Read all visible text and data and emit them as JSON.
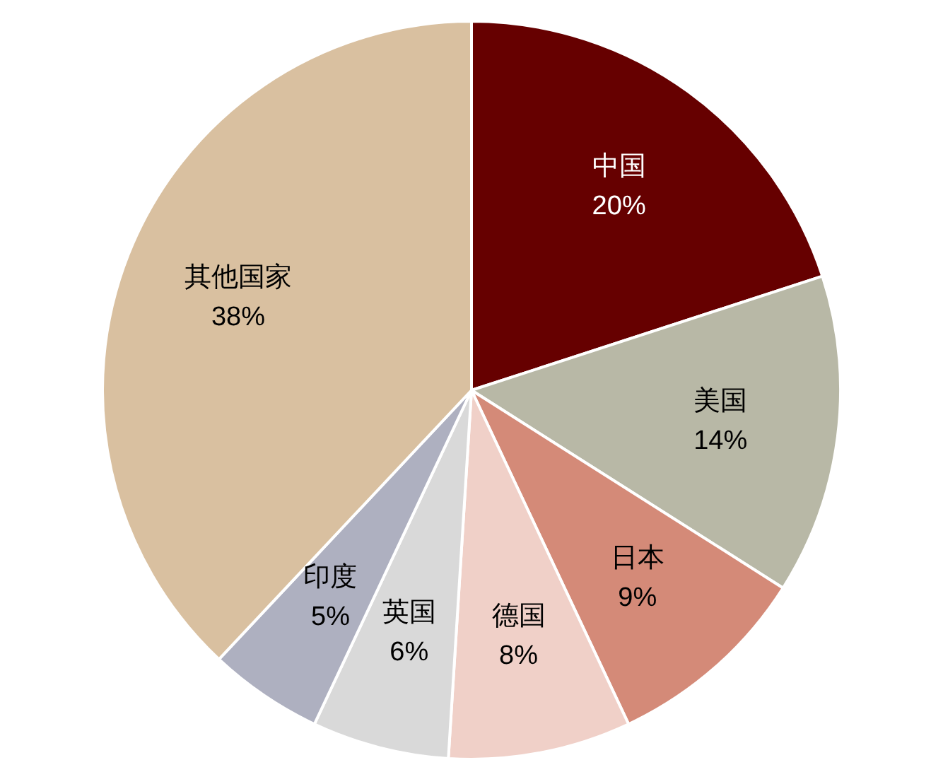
{
  "chart_data": {
    "type": "pie",
    "categories": [
      "中国",
      "美国",
      "日本",
      "德国",
      "英国",
      "印度",
      "其他国家"
    ],
    "values": [
      20,
      14,
      9,
      8,
      6,
      5,
      38
    ],
    "value_labels": [
      "20%",
      "14%",
      "9%",
      "8%",
      "6%",
      "5%",
      "38%"
    ],
    "colors": [
      "#660000",
      "#b8b8a6",
      "#d48a78",
      "#f0d0c8",
      "#d9d9d9",
      "#aeb0c0",
      "#d9c0a0"
    ],
    "legend": false
  }
}
